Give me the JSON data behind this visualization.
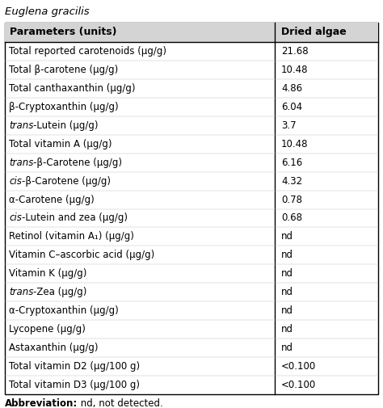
{
  "title": "Euglena gracilis",
  "col_headers": [
    "Parameters (units)",
    "Dried algae"
  ],
  "rows": [
    [
      "Total reported carotenoids (μg/g)",
      "21.68"
    ],
    [
      "Total β-carotene (μg/g)",
      "10.48"
    ],
    [
      "Total canthaxanthin (μg/g)",
      "4.86"
    ],
    [
      "β-Cryptoxanthin (μg/g)",
      "6.04"
    ],
    [
      "trans-Lutein (μg/g)",
      "3.7"
    ],
    [
      "Total vitamin A (μg/g)",
      "10.48"
    ],
    [
      "trans-β-Carotene (μg/g)",
      "6.16"
    ],
    [
      "cis-β-Carotene (μg/g)",
      "4.32"
    ],
    [
      "α-Carotene (μg/g)",
      "0.78"
    ],
    [
      "cis-Lutein and zea (μg/g)",
      "0.68"
    ],
    [
      "Retinol (vitamin A₁) (μg/g)",
      "nd"
    ],
    [
      "Vitamin C–ascorbic acid (μg/g)",
      "nd"
    ],
    [
      "Vitamin K (μg/g)",
      "nd"
    ],
    [
      "trans-Zea (μg/g)",
      "nd"
    ],
    [
      "α-Cryptoxanthin (μg/g)",
      "nd"
    ],
    [
      "Lycopene (μg/g)",
      "nd"
    ],
    [
      "Astaxanthin (μg/g)",
      "nd"
    ],
    [
      "Total vitamin D2 (μg/100 g)",
      "<0.100"
    ],
    [
      "Total vitamin D3 (μg/100 g)",
      "<0.100"
    ]
  ],
  "italic_info": {
    "4": [
      "trans",
      "-Lutein (μg/g)"
    ],
    "6": [
      "trans",
      "-β-Carotene (μg/g)"
    ],
    "7": [
      "cis",
      "-β-Carotene (μg/g)"
    ],
    "9": [
      "cis",
      "-Lutein and zea (μg/g)"
    ],
    "13": [
      "trans",
      "-Zea (μg/g)"
    ]
  },
  "footnote_bold": "Abbreviation:",
  "footnote_normal": " nd, not detected.",
  "header_bg": "#d4d4d4",
  "border_color": "#000000",
  "text_color": "#000000",
  "font_size": 8.5,
  "header_font_size": 9.0,
  "title_font_size": 9.5
}
